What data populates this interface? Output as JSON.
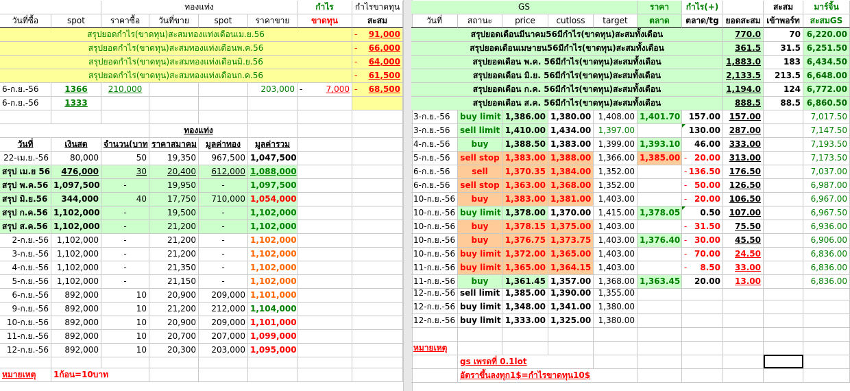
{
  "left": {
    "header1": {
      "gold": "ทองแท่ง",
      "profit": "กำไร",
      "profit_cost": "กำไรขาดทุน"
    },
    "header2": {
      "buy_date": "วันที่ซื้อ",
      "spot": "spot",
      "buy_price": "ราคาซื้อ",
      "sell_date": "วันที่ขาย",
      "spot2": "spot",
      "sell_price": "ราคาขาย",
      "loss": "ขาดทุน",
      "accum": "สะสม"
    },
    "monthly_summaries": [
      {
        "label": "สรุปยอดกำไร(ขาดทุน)สะสมทองแท่งเดือนเม.ย.56",
        "dash": "-",
        "value": "91,000"
      },
      {
        "label": "สรุปยอดกำไร(ขาดทุน)สะสมทองแท่งเดือนพ.ค.56",
        "dash": "-",
        "value": "66,000"
      },
      {
        "label": "สรุปยอดกำไร(ขาดทุน)สะสมทองแท่งเดือนมิ.ย.56",
        "dash": "-",
        "value": "64,000"
      },
      {
        "label": "สรุปยอดกำไร(ขาดทุน)สะสมทองแท่งเดือนก.ค.56",
        "dash": "-",
        "value": "61,500"
      }
    ],
    "trade_row": {
      "buy_date": "6-ก.ย.-56",
      "spot": "1366",
      "buy_price": "210,000",
      "sell_price": "203,000",
      "dash1": "-",
      "profit": "7,000",
      "dash2": "-",
      "accum": "68,500"
    },
    "trade_row2": {
      "buy_date": "6-ก.ย.-56",
      "spot": "1333"
    },
    "gold_title": "ทองแท่ง",
    "columns": {
      "date": "วันที่",
      "cash": "เงินสด",
      "qty": "จำนวน(บาท)",
      "assoc_price": "ราคาสมาคม",
      "gold_value": "มูลค่าทอง",
      "total_value": "มูลค่ารวม"
    },
    "rows": [
      {
        "date": "22-เม.ย.-56",
        "cash": "80,000",
        "qty": "50",
        "price": "19,350",
        "value": "967,500",
        "total": "1,047,500",
        "style": "plain",
        "total_color": "black"
      },
      {
        "date": "สรุป เม.ย 56",
        "cash": "476,000",
        "qty": "30",
        "price": "20,400",
        "value": "612,000",
        "total": "1,088,000",
        "style": "summary",
        "total_color": "green"
      },
      {
        "date": "สรุป พ.ค.56",
        "cash": "1,097,500",
        "qty": "-",
        "price": "19,950",
        "value": "-",
        "total": "1,097,500",
        "style": "summary",
        "total_color": "green"
      },
      {
        "date": "สรุป มิ.ย.56",
        "cash": "344,000",
        "qty": "40",
        "price": "17,750",
        "value": "710,000",
        "total": "1,054,000",
        "style": "summary",
        "total_color": "red"
      },
      {
        "date": "สรุป ก.ค.56",
        "cash": "1,102,000",
        "qty": "-",
        "price": "19,500",
        "value": "-",
        "total": "1,102,000",
        "style": "summary",
        "total_color": "green"
      },
      {
        "date": "สรุป ส.ค.56",
        "cash": "1,102,000",
        "qty": "-",
        "price": "21,200",
        "value": "-",
        "total": "1,102,000",
        "style": "summary",
        "total_color": "green"
      },
      {
        "date": "2-ก.ย.-56",
        "cash": "1,102,000",
        "qty": "-",
        "price": "21,200",
        "value": "-",
        "total": "1,102,000",
        "style": "plain",
        "total_color": "orange"
      },
      {
        "date": "3-ก.ย.-56",
        "cash": "1,102,000",
        "qty": "-",
        "price": "21,200",
        "value": "-",
        "total": "1,102,000",
        "style": "plain",
        "total_color": "orange"
      },
      {
        "date": "4-ก.ย.-56",
        "cash": "1,102,000",
        "qty": "-",
        "price": "21,350",
        "value": "-",
        "total": "1,102,000",
        "style": "plain",
        "total_color": "orange"
      },
      {
        "date": "5-ก.ย.-56",
        "cash": "1,102,000",
        "qty": "-",
        "price": "21,150",
        "value": "-",
        "total": "1,102,000",
        "style": "plain",
        "total_color": "orange"
      },
      {
        "date": "6-ก.ย.-56",
        "cash": "892,000",
        "qty": "10",
        "price": "20,900",
        "value": "209,000",
        "total": "1,101,000",
        "style": "plain",
        "total_color": "orange"
      },
      {
        "date": "9-ก.ย.-56",
        "cash": "892,000",
        "qty": "10",
        "price": "21,200",
        "value": "212,000",
        "total": "1,104,000",
        "style": "plain",
        "total_color": "green"
      },
      {
        "date": "10-ก.ย.-56",
        "cash": "892,000",
        "qty": "10",
        "price": "20,900",
        "value": "209,000",
        "total": "1,101,000",
        "style": "plain",
        "total_color": "red"
      },
      {
        "date": "11-ก.ย.-56",
        "cash": "892,000",
        "qty": "10",
        "price": "20,700",
        "value": "207,000",
        "total": "1,099,000",
        "style": "plain",
        "total_color": "red"
      },
      {
        "date": "12-ก.ย.-56",
        "cash": "892,000",
        "qty": "10",
        "price": "20,300",
        "value": "203,000",
        "total": "1,095,000",
        "style": "plain",
        "total_color": "red"
      }
    ],
    "note_label": "หมายเหตุ",
    "note_text": "1ก้อน=10บาท"
  },
  "right": {
    "header1": {
      "gs": "GS",
      "price": "ราคา",
      "profit_plus": "กำไร(+)",
      "accum": "สะสม",
      "margin": "มาร์จิ้น"
    },
    "header2": {
      "date": "วันที่",
      "status": "สถานะ",
      "price": "price",
      "cutloss": "cutloss",
      "target": "target",
      "market": "ตลาด",
      "market_tg": "ตลาด/tg",
      "total_accum": "ยอดสะสม",
      "deposit": "เข้าพอร์ท",
      "accum_gs": "สะสมGS"
    },
    "summaries": [
      {
        "label": "สรุปยอดเดือนมีนาคม56มีกำไร(ขาดทุน)สะสมทั้งเดือน",
        "accum": "770.0",
        "deposit": "70",
        "gs": "6,220.00"
      },
      {
        "label": "สรุปยอดเดือนเมษายน56มีกำไร(ขาดทุน)สะสมทั้งเดือน",
        "accum": "361.5",
        "deposit": "31.5",
        "gs": "6,251.50"
      },
      {
        "label": "สรุปยอดเดือน พ.ค. 56มีกำไร(ขาดทุน)สะสมทั้งเดือน",
        "accum": "1,883.0",
        "deposit": "183",
        "gs": "6,434.50"
      },
      {
        "label": "สรุปยอดเดือน มิ.ย. 56มีกำไร(ขาดทุน)สะสมทั้งเดือน",
        "accum": "2,133.5",
        "deposit": "213.5",
        "gs": "6,648.00"
      },
      {
        "label": "สรุปยอดเดือน ก.ค. 56มีกำไร(ขาดทุน)สะสมทั้งเดือน",
        "accum": "1,194.0",
        "deposit": "124",
        "gs": "6,772.00"
      },
      {
        "label": "สรุปยอดเดือน ส.ค. 56มีกำไร(ขาดทุน)สะสมทั้งเดือน",
        "accum": "888.5",
        "deposit": "88.5",
        "gs": "6,860.50"
      }
    ],
    "trades": [
      {
        "date": "3-ก.ย.-56",
        "status": "buy limit",
        "price": "1,386.00",
        "cutloss": "1,380.00",
        "target": "1,408.00",
        "market": "1,401.70",
        "pl_dash": "",
        "pl": "157.00",
        "accum": "157.00",
        "gs": "7,017.50",
        "row_style": "green",
        "market_style": "green",
        "pl_color": "black",
        "accum_color": "black",
        "target_color": "black",
        "tri": false
      },
      {
        "date": "3-ก.ย.-56",
        "status": "sell limit",
        "price": "1,410.00",
        "cutloss": "1,434.00",
        "target": "1,397.00",
        "market": "",
        "pl_dash": "",
        "pl": "130.00",
        "accum": "287.00",
        "gs": "7,147.50",
        "row_style": "green",
        "market_style": "none",
        "pl_color": "black",
        "accum_color": "black",
        "target_color": "green",
        "tri": true
      },
      {
        "date": "4-ก.ย.-56",
        "status": "buy",
        "price": "1,388.50",
        "cutloss": "1,383.00",
        "target": "1,399.00",
        "market": "1,393.10",
        "pl_dash": "",
        "pl": "46.00",
        "accum": "333.00",
        "gs": "7,193.50",
        "row_style": "green",
        "market_style": "green",
        "pl_color": "black",
        "accum_color": "black",
        "target_color": "black",
        "tri": false
      },
      {
        "date": "5-ก.ย.-56",
        "status": "sell stop",
        "price": "1,383.00",
        "cutloss": "1,388.00",
        "target": "1,366.00",
        "market": "1,385.00",
        "pl_dash": "-",
        "pl": "20.00",
        "accum": "313.00",
        "gs": "7,173.50",
        "row_style": "orange",
        "market_style": "orange",
        "pl_color": "red",
        "accum_color": "black",
        "target_color": "black",
        "tri": false
      },
      {
        "date": "6-ก.ย.-56",
        "status": "sell",
        "price": "1,370.35",
        "cutloss": "1,384.00",
        "target": "1,352.00",
        "market": "",
        "pl_dash": "-",
        "pl": "136.50",
        "accum": "176.50",
        "gs": "7,037.00",
        "row_style": "orange",
        "market_style": "none",
        "pl_color": "red",
        "accum_color": "black",
        "target_color": "black",
        "tri": false
      },
      {
        "date": "6-ก.ย.-56",
        "status": "sell stop",
        "price": "1,363.00",
        "cutloss": "1,368.00",
        "target": "1,352.00",
        "market": "",
        "pl_dash": "-",
        "pl": "50.00",
        "accum": "126.50",
        "gs": "6,987.00",
        "row_style": "orange",
        "market_style": "none",
        "pl_color": "red",
        "accum_color": "black",
        "target_color": "black",
        "tri": false
      },
      {
        "date": "10-ก.ย.-56",
        "status": "buy",
        "price": "1,383.00",
        "cutloss": "1,381.00",
        "target": "1,403.00",
        "market": "",
        "pl_dash": "-",
        "pl": "20.00",
        "accum": "106.50",
        "gs": "6,967.00",
        "row_style": "orange",
        "market_style": "none",
        "pl_color": "red",
        "accum_color": "black",
        "target_color": "black",
        "tri": false
      },
      {
        "date": "10-ก.ย.-56",
        "status": "buy limit",
        "price": "1,378.00",
        "cutloss": "1,370.00",
        "target": "1,415.00",
        "market": "1,378.05",
        "pl_dash": "",
        "pl": "0.50",
        "accum": "107.00",
        "gs": "6,967.50",
        "row_style": "green",
        "market_style": "green",
        "pl_color": "black",
        "accum_color": "black",
        "target_color": "black",
        "tri": true
      },
      {
        "date": "10-ก.ย.-56",
        "status": "buy",
        "price": "1,378.15",
        "cutloss": "1,375.00",
        "target": "1,403.00",
        "market": "",
        "pl_dash": "-",
        "pl": "31.50",
        "accum": "75.50",
        "gs": "6,936.00",
        "row_style": "orange",
        "market_style": "none",
        "pl_color": "red",
        "accum_color": "black",
        "target_color": "black",
        "tri": false
      },
      {
        "date": "10-ก.ย.-56",
        "status": "buy",
        "price": "1,376.75",
        "cutloss": "1,373.75",
        "target": "1,403.00",
        "market": "1,376.40",
        "pl_dash": "-",
        "pl": "30.00",
        "accum": "45.50",
        "gs": "6,906.00",
        "row_style": "orange",
        "market_style": "green",
        "pl_color": "red",
        "accum_color": "black",
        "target_color": "black",
        "tri": false
      },
      {
        "date": "10-ก.ย.-56",
        "status": "buy limit",
        "price": "1,372.00",
        "cutloss": "1,365.00",
        "target": "1,403.00",
        "market": "",
        "pl_dash": "-",
        "pl": "70.00",
        "accum": "24.50",
        "gs": "6,836.00",
        "row_style": "orange",
        "market_style": "none",
        "pl_color": "red",
        "accum_color": "red",
        "target_color": "black",
        "tri": false
      },
      {
        "date": "11-ก.ย.-56",
        "status": "buy limit",
        "price": "1,365.00",
        "cutloss": "1,364.15",
        "target": "1,403.00",
        "market": "",
        "pl_dash": "-",
        "pl": "8.50",
        "accum": "33.00",
        "gs": "6,836.00",
        "row_style": "orange",
        "market_style": "none",
        "pl_color": "red",
        "accum_color": "red",
        "target_color": "black",
        "tri": false
      },
      {
        "date": "11-ก.ย.-56",
        "status": "buy",
        "price": "1,361.45",
        "cutloss": "1,357.00",
        "target": "1,368.00",
        "market": "1,363.45",
        "pl_dash": "",
        "pl": "20.00",
        "accum": "13.00",
        "gs": "6,836.00",
        "row_style": "green",
        "market_style": "green",
        "pl_color": "black",
        "accum_color": "red",
        "target_color": "black",
        "tri": false
      }
    ],
    "pending": [
      {
        "date": "12-ก.ย.-56",
        "status": "sell limit",
        "price": "1,385.00",
        "cutloss": "1,390.00",
        "target": "1,355.00"
      },
      {
        "date": "12-ก.ย.-56",
        "status": "buy limit",
        "price": "1,348.00",
        "cutloss": "1,341.00",
        "target": "1,380.00"
      },
      {
        "date": "12-ก.ย.-56",
        "status": "buy limit",
        "price": "1,333.00",
        "cutloss": "1,325.00",
        "target": "1,380.00"
      }
    ],
    "note_label": "หมายเหตุ",
    "note_line1": "gs เพรดที่ 0.1lot",
    "note_line2": "อัตราขึ้นลงทุก1$=กำไรขาดทุน10$"
  },
  "colors": {
    "light_yellow": "#ffff99",
    "light_green": "#ccffcc",
    "light_orange": "#ffcc99",
    "green_text": "#008000",
    "red_text": "#ff0000",
    "orange_text": "#ff6600"
  }
}
